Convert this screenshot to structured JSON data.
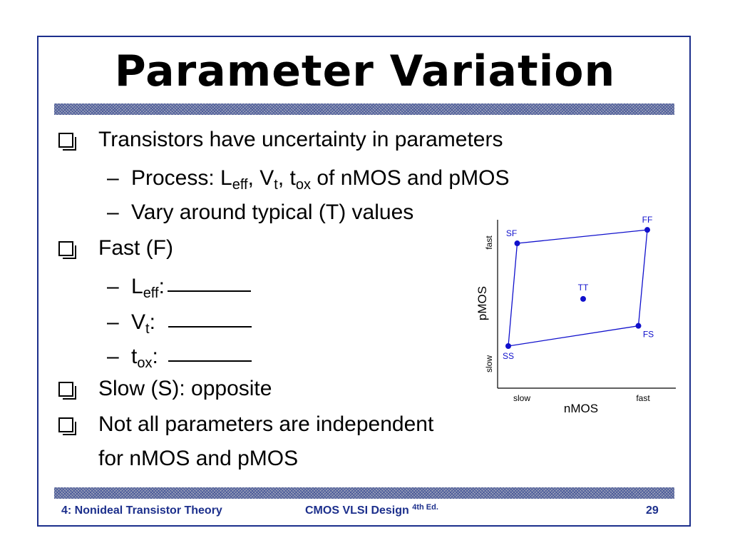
{
  "slide": {
    "title": "Parameter Variation",
    "bullets": [
      "Transistors have uncertainty in parameters",
      "Fast (F)",
      "Slow (S): opposite",
      "Not all parameters are independent",
      "for nMOS and pMOS"
    ],
    "sub1": {
      "prefix": "Process: L",
      "leff_sub": "eff",
      "v_sep": ", V",
      "vt_sub": "t",
      "t_sep": ", t",
      "tox_sub": "ox",
      "suffix": " of nMOS and pMOS"
    },
    "sub2": "Vary around typical (T) values",
    "fast_items": [
      {
        "main": "L",
        "sub": "eff",
        "colon": ":"
      },
      {
        "main": "V",
        "sub": "t",
        "colon": ":"
      },
      {
        "main": "t",
        "sub": "ox",
        "colon": ":"
      }
    ]
  },
  "chart_data": {
    "type": "scatter",
    "xlabel": "nMOS",
    "ylabel": "pMOS",
    "x_ticks": [
      "slow",
      "fast"
    ],
    "y_ticks": [
      "slow",
      "fast"
    ],
    "points": [
      {
        "label": "SF",
        "x": 0.11,
        "y": 0.86
      },
      {
        "label": "FF",
        "x": 0.84,
        "y": 0.94
      },
      {
        "label": "TT",
        "x": 0.48,
        "y": 0.53
      },
      {
        "label": "FS",
        "x": 0.79,
        "y": 0.37
      },
      {
        "label": "SS",
        "x": 0.06,
        "y": 0.25
      }
    ],
    "outline": [
      "SF",
      "FF",
      "FS",
      "SS"
    ],
    "point_color": "#1010cc"
  },
  "footer": {
    "left": "4: Nonideal Transistor Theory",
    "center": "CMOS VLSI Design",
    "center_sup": "4th Ed.",
    "page": "29"
  }
}
